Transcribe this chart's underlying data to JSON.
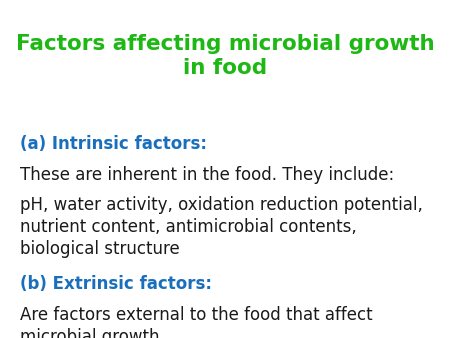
{
  "title_line1": "Factors affecting microbial growth",
  "title_line2": "in food",
  "title_color": "#1db814",
  "title_fontsize": 15.5,
  "body_color": "#1a1a1a",
  "blue_color": "#1a6fbd",
  "background_color": "#ffffff",
  "section_a_label": "(a) Intrinsic factors:",
  "section_a_body1": "These are inherent in the food. They include:",
  "section_a_body2": "pH, water activity, oxidation reduction potential,\nnutrient content, antimicrobial contents,\nbiological structure",
  "section_b_label": "(b) Extrinsic factors:",
  "section_b_body": "Are factors external to the food that affect\nmicrobial growth.",
  "subtitle_fontsize": 12,
  "body_fontsize": 12
}
